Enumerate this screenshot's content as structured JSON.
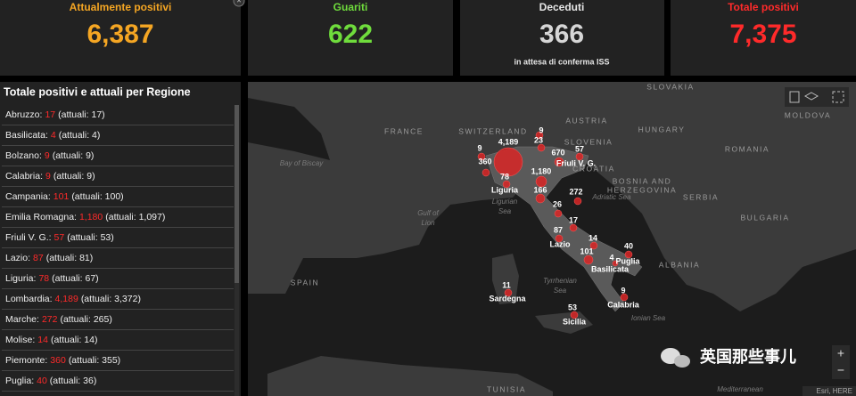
{
  "cards": [
    {
      "label": "Attualmente positivi",
      "value": "6,387"
    },
    {
      "label": "Guariti",
      "value": "622"
    },
    {
      "label": "Deceduti",
      "value": "366",
      "note": "in attesa di conferma ISS"
    },
    {
      "label": "Totale positivi",
      "value": "7,375"
    }
  ],
  "close_button": "×",
  "region_panel": {
    "title": "Totale positivi e attuali per Regione",
    "rows": [
      {
        "name": "Abruzzo:",
        "total": "17",
        "current": "(attuali: 17)"
      },
      {
        "name": "Basilicata:",
        "total": "4",
        "current": "(attuali: 4)"
      },
      {
        "name": "Bolzano:",
        "total": "9",
        "current": "(attuali: 9)"
      },
      {
        "name": "Calabria:",
        "total": "9",
        "current": "(attuali: 9)"
      },
      {
        "name": "Campania:",
        "total": "101",
        "current": "(attuali: 100)"
      },
      {
        "name": "Emilia Romagna:",
        "total": "1,180",
        "current": "(attuali: 1,097)"
      },
      {
        "name": "Friuli V. G.:",
        "total": "57",
        "current": "(attuali: 53)"
      },
      {
        "name": "Lazio:",
        "total": "87",
        "current": "(attuali: 81)"
      },
      {
        "name": "Liguria:",
        "total": "78",
        "current": "(attuali: 67)"
      },
      {
        "name": "Lombardia:",
        "total": "4,189",
        "current": "(attuali: 3,372)"
      },
      {
        "name": "Marche:",
        "total": "272",
        "current": "(attuali: 265)"
      },
      {
        "name": "Molise:",
        "total": "14",
        "current": "(attuali: 14)"
      },
      {
        "name": "Piemonte:",
        "total": "360",
        "current": "(attuali: 355)"
      },
      {
        "name": "Puglia:",
        "total": "40",
        "current": "(attuali: 36)"
      }
    ]
  },
  "map": {
    "countries": [
      "SLOVAKIA",
      "MOLDOVA",
      "AUSTRIA",
      "HUNGARY",
      "FRANCE",
      "SWITZERLAND",
      "SLOVENIA",
      "ROMANIA",
      "CROATIA",
      "BOSNIA AND",
      "HERZEGOVINA",
      "SERBIA",
      "BULGARIA",
      "ALBANIA",
      "SPAIN",
      "TUNISIA"
    ],
    "seas": [
      "Bay of Biscay",
      "Gulf of",
      "Lion",
      "Ligurian",
      "Sea",
      "Adriatic Sea",
      "Tyrrhenian",
      "Sea",
      "Ionian Sea",
      "Mediterranean"
    ],
    "regions": [
      "Liguria",
      "Friuli V. G.",
      "Lazio",
      "Puglia",
      "Basilicata",
      "Calabria",
      "Sardegna",
      "Sicilia"
    ],
    "counts": [
      "4,189",
      "9",
      "23",
      "9",
      "360",
      "670",
      "57",
      "1,180",
      "78",
      "166",
      "272",
      "26",
      "17",
      "87",
      "14",
      "101",
      "40",
      "4",
      "11",
      "53",
      "9"
    ],
    "zoom_in": "+",
    "zoom_out": "−",
    "attribution": "Esri, HERE"
  },
  "watermark": "英国那些事儿"
}
